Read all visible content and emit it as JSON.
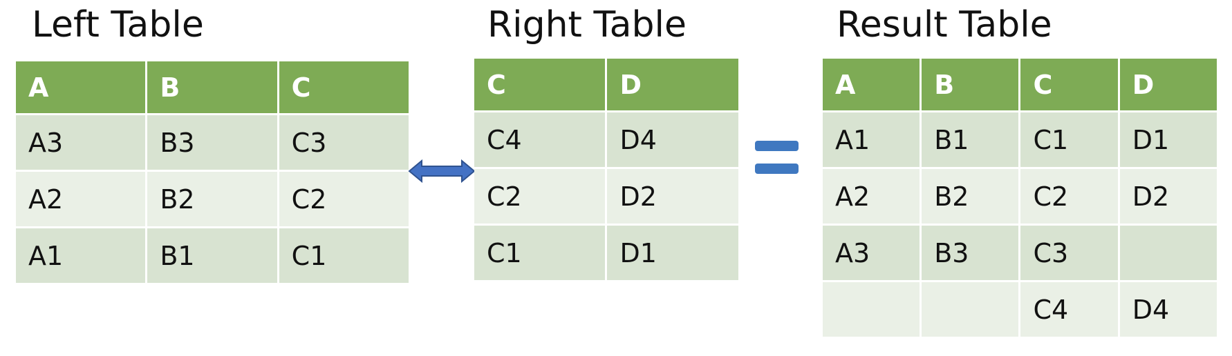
{
  "left_table": {
    "title": "Left Table",
    "headers": [
      "A",
      "B",
      "C"
    ],
    "rows": [
      [
        "A3",
        "B3",
        "C3"
      ],
      [
        "A2",
        "B2",
        "C2"
      ],
      [
        "A1",
        "B1",
        "C1"
      ]
    ]
  },
  "right_table": {
    "title": "Right Table",
    "headers": [
      "C",
      "D"
    ],
    "rows": [
      [
        "C4",
        "D4"
      ],
      [
        "C2",
        "D2"
      ],
      [
        "C1",
        "D1"
      ]
    ]
  },
  "result_table": {
    "title": "Result Table",
    "headers": [
      "A",
      "B",
      "C",
      "D"
    ],
    "rows": [
      [
        "A1",
        "B1",
        "C1",
        "D1"
      ],
      [
        "A2",
        "B2",
        "C2",
        "D2"
      ],
      [
        "A3",
        "B3",
        "C3",
        ""
      ],
      [
        "",
        "",
        "C4",
        "D4"
      ]
    ]
  },
  "colors": {
    "header_bg": "#7eab55",
    "row_dark": "#d8e3d1",
    "row_light": "#eaf0e6",
    "arrow": "#4472c4",
    "equals": "#3f78c0"
  },
  "icons": {
    "join_arrow": "double-headed-arrow",
    "equals_sign": "equals"
  }
}
